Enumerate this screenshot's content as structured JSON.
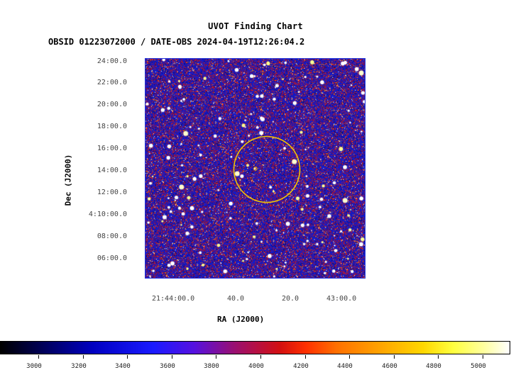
{
  "title": "UVOT Finding Chart",
  "subtitle": "OBSID 01223072000 / DATE-OBS 2024-04-19T12:26:04.2",
  "axes": {
    "ylabel": "Dec (J2000)",
    "xlabel": "RA (J2000)",
    "y_ticks": [
      "24:00.0",
      "22:00.0",
      "20:00.0",
      "18:00.0",
      "16:00.0",
      "14:00.0",
      "12:00.0",
      "4:10:00.0",
      "08:00.0",
      "06:00.0"
    ],
    "x_ticks": [
      "21:44:00.0",
      "40.0",
      "20.0",
      "43:00.0"
    ]
  },
  "colorbar": {
    "labels": [
      "3000",
      "3200",
      "3400",
      "3600",
      "3800",
      "4000",
      "4200",
      "4400",
      "4600",
      "4800",
      "5000"
    ]
  },
  "colors": {
    "frame": "#2233dd",
    "circle": "#f5c400",
    "background_noise": "#1a1ad0"
  },
  "overlay": {
    "circle": "source region marker",
    "marker": "target position"
  }
}
